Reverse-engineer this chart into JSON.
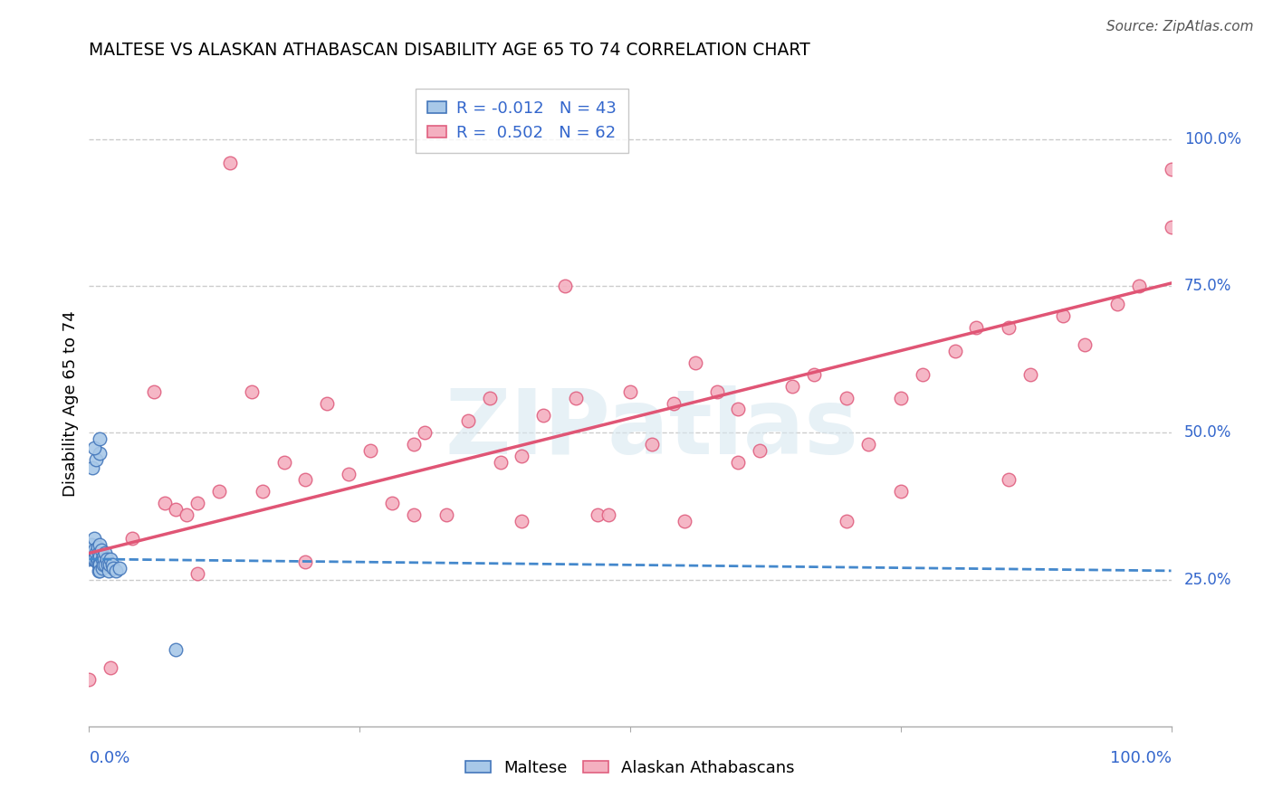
{
  "title": "MALTESE VS ALASKAN ATHABASCAN DISABILITY AGE 65 TO 74 CORRELATION CHART",
  "source": "Source: ZipAtlas.com",
  "ylabel": "Disability Age 65 to 74",
  "ylabel_right_labels": [
    "100.0%",
    "75.0%",
    "50.0%",
    "25.0%"
  ],
  "ylabel_right_positions": [
    1.0,
    0.75,
    0.5,
    0.25
  ],
  "xlim": [
    0.0,
    1.0
  ],
  "ylim": [
    0.0,
    1.1
  ],
  "legend_maltese": "Maltese",
  "legend_alaskan": "Alaskan Athabascans",
  "r_maltese": -0.012,
  "n_maltese": 43,
  "r_alaskan": 0.502,
  "n_alaskan": 62,
  "color_maltese_fill": "#a8c8e8",
  "color_alaskan_fill": "#f4b0c0",
  "color_maltese_edge": "#4477bb",
  "color_alaskan_edge": "#e06080",
  "color_maltese_line": "#4488cc",
  "color_alaskan_line": "#e05575",
  "watermark": "ZIPatlas",
  "grid_color": "#cccccc",
  "alaskan_line_y0": 0.295,
  "alaskan_line_y1": 0.755,
  "maltese_line_y0": 0.285,
  "maltese_line_y1": 0.265,
  "maltese_x": [
    0.0,
    0.0,
    0.0,
    0.002,
    0.003,
    0.004,
    0.005,
    0.005,
    0.005,
    0.006,
    0.007,
    0.008,
    0.008,
    0.009,
    0.009,
    0.009,
    0.01,
    0.01,
    0.01,
    0.01,
    0.011,
    0.012,
    0.012,
    0.013,
    0.013,
    0.014,
    0.015,
    0.015,
    0.016,
    0.017,
    0.018,
    0.019,
    0.02,
    0.021,
    0.022,
    0.025,
    0.028,
    0.003,
    0.006,
    0.01,
    0.08,
    0.005,
    0.01
  ],
  "maltese_y": [
    0.3,
    0.29,
    0.285,
    0.31,
    0.295,
    0.285,
    0.32,
    0.3,
    0.285,
    0.295,
    0.28,
    0.305,
    0.285,
    0.295,
    0.275,
    0.265,
    0.31,
    0.29,
    0.275,
    0.265,
    0.3,
    0.285,
    0.27,
    0.29,
    0.275,
    0.285,
    0.295,
    0.275,
    0.285,
    0.275,
    0.265,
    0.275,
    0.285,
    0.275,
    0.27,
    0.265,
    0.27,
    0.44,
    0.455,
    0.465,
    0.13,
    0.475,
    0.49
  ],
  "alaskan_x": [
    0.0,
    0.02,
    0.04,
    0.06,
    0.07,
    0.08,
    0.09,
    0.1,
    0.12,
    0.13,
    0.15,
    0.16,
    0.18,
    0.2,
    0.22,
    0.24,
    0.26,
    0.28,
    0.3,
    0.31,
    0.33,
    0.35,
    0.37,
    0.38,
    0.4,
    0.42,
    0.44,
    0.45,
    0.47,
    0.5,
    0.52,
    0.54,
    0.56,
    0.58,
    0.6,
    0.62,
    0.65,
    0.67,
    0.7,
    0.72,
    0.75,
    0.77,
    0.8,
    0.82,
    0.85,
    0.87,
    0.9,
    0.92,
    0.95,
    0.97,
    1.0,
    1.0,
    0.48,
    0.3,
    0.2,
    0.1,
    0.4,
    0.6,
    0.7,
    0.75,
    0.55,
    0.85
  ],
  "alaskan_y": [
    0.08,
    0.1,
    0.32,
    0.57,
    0.38,
    0.37,
    0.36,
    0.38,
    0.4,
    0.96,
    0.57,
    0.4,
    0.45,
    0.42,
    0.55,
    0.43,
    0.47,
    0.38,
    0.48,
    0.5,
    0.36,
    0.52,
    0.56,
    0.45,
    0.46,
    0.53,
    0.75,
    0.56,
    0.36,
    0.57,
    0.48,
    0.55,
    0.62,
    0.57,
    0.54,
    0.47,
    0.58,
    0.6,
    0.56,
    0.48,
    0.56,
    0.6,
    0.64,
    0.68,
    0.68,
    0.6,
    0.7,
    0.65,
    0.72,
    0.75,
    0.95,
    0.85,
    0.36,
    0.36,
    0.28,
    0.26,
    0.35,
    0.45,
    0.35,
    0.4,
    0.35,
    0.42
  ]
}
